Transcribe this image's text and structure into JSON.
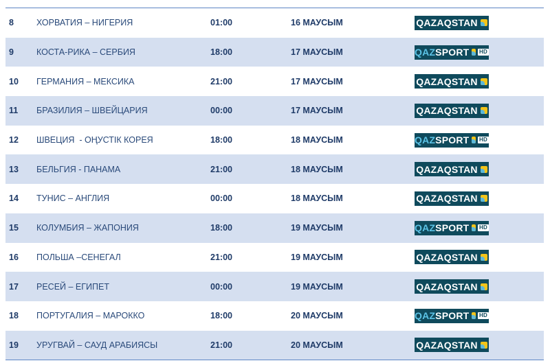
{
  "rows": [
    {
      "n": "8",
      "match": "ХОРВАТИЯ – НИГЕРИЯ",
      "time": "01:00",
      "date": "16 МАУСЫМ",
      "channel": "QAZAQSTAN"
    },
    {
      "n": "9",
      "match": "КОСТА-РИКА – СЕРБИЯ",
      "time": "18:00",
      "date": "17 МАУСЫМ",
      "channel": "QAZSPORT HD"
    },
    {
      "n": "10",
      "match": "ГЕРМАНИЯ – МЕКСИКА",
      "time": "21:00",
      "date": "17 МАУСЫМ",
      "channel": "QAZAQSTAN"
    },
    {
      "n": "11",
      "match": "БРАЗИЛИЯ – ШВЕЙЦАРИЯ",
      "time": "00:00",
      "date": "17 МАУСЫМ",
      "channel": "QAZAQSTAN"
    },
    {
      "n": "12",
      "match": "ШВЕЦИЯ  - ОҢУСТІК КОРЕЯ",
      "time": "18:00",
      "date": "18 МАУСЫМ",
      "channel": "QAZSPORT HD"
    },
    {
      "n": "13",
      "match": "БЕЛЬГИЯ - ПАНАМА",
      "time": "21:00",
      "date": "18 МАУСЫМ",
      "channel": "QAZAQSTAN"
    },
    {
      "n": "14",
      "match": "ТУНИС – АНГЛИЯ",
      "time": "00:00",
      "date": "18 МАУСЫМ",
      "channel": "QAZAQSTAN"
    },
    {
      "n": "15",
      "match": "КОЛУМБИЯ – ЖАПОНИЯ",
      "time": "18:00",
      "date": "19 МАУСЫМ",
      "channel": "QAZSPORT HD"
    },
    {
      "n": "16",
      "match": "ПОЛЬША –СЕНЕГАЛ",
      "time": "21:00",
      "date": "19 МАУСЫМ",
      "channel": "QAZAQSTAN"
    },
    {
      "n": "17",
      "match": "РЕСЕЙ – ЕГИПЕТ",
      "time": "00:00",
      "date": "19 МАУСЫМ",
      "channel": "QAZAQSTAN"
    },
    {
      "n": "18",
      "match": "ПОРТУГАЛИЯ – МАРОККО",
      "time": "18:00",
      "date": "20 МАУСЫМ",
      "channel": "QAZSPORT HD"
    },
    {
      "n": "19",
      "match": "УРУГВАЙ – САУД АРАБИЯСЫ",
      "time": "21:00",
      "date": "20 МАУСЫМ",
      "channel": "QAZAQSTAN"
    }
  ],
  "logos": {
    "qazaqstan": "QAZAQSTAN",
    "qaz": "QAZ",
    "sport": "SPORT",
    "hd": "HD"
  },
  "colors": {
    "logo_bg": "#0f4a5c",
    "stripe": "#d5dff0",
    "border": "#5b84c4"
  }
}
